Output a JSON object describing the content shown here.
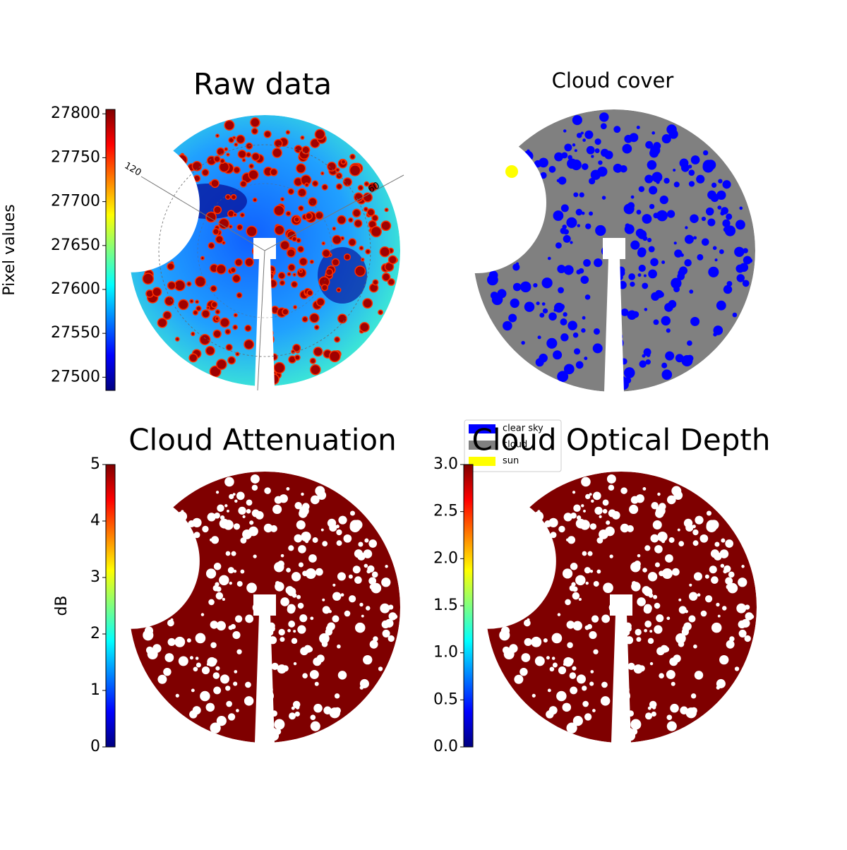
{
  "chart_data": [
    {
      "type": "image",
      "title": "Raw data",
      "colormap": "jet",
      "colorbar": {
        "label": "Pixel values",
        "lim": [
          27485,
          27805
        ],
        "ticks": [
          27500,
          27550,
          27600,
          27650,
          27700,
          27750,
          27800
        ]
      },
      "annotations": [
        "120",
        "60"
      ]
    },
    {
      "type": "image",
      "title": "Cloud cover",
      "series": [
        {
          "name": "clear sky",
          "color": "#0000ff"
        },
        {
          "name": "cloud",
          "color": "#808080"
        },
        {
          "name": "sun",
          "color": "#ffff00"
        }
      ]
    },
    {
      "type": "image",
      "title": "Cloud Attenuation",
      "colormap": "jet",
      "colorbar": {
        "label": "dB",
        "lim": [
          0,
          5
        ],
        "ticks": [
          0,
          1,
          2,
          3,
          4,
          5
        ]
      }
    },
    {
      "type": "image",
      "title": "Cloud Optical Depth",
      "colormap": "jet",
      "colorbar": {
        "lim": [
          0,
          3
        ],
        "ticks": [
          {
            "value": 0,
            "label": "0.0"
          },
          0.5,
          {
            "value": 1,
            "label": "1.0"
          },
          1.5,
          {
            "value": 2,
            "label": "2.0"
          },
          2.5,
          {
            "value": 3,
            "label": "3.0"
          }
        ]
      }
    }
  ]
}
